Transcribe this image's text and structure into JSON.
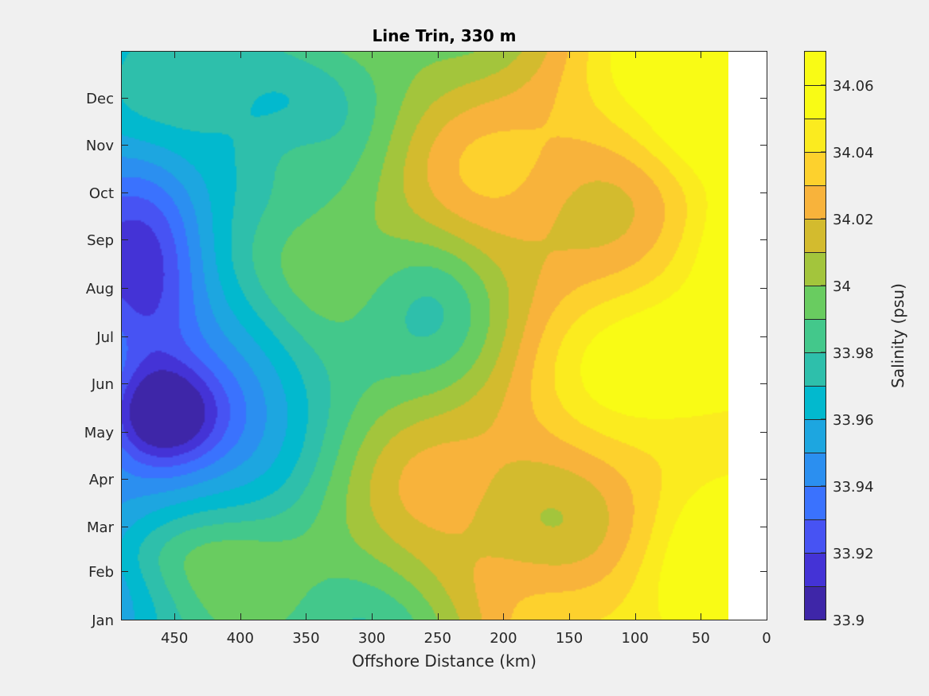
{
  "chart_data": {
    "type": "heatmap",
    "subtype": "filled-contour",
    "title": "Line Trin, 330 m",
    "xlabel": "Offshore Distance (km)",
    "ylabel": "",
    "xlim": [
      490,
      0
    ],
    "x_reversed": true,
    "x_ticks": [
      450,
      400,
      350,
      300,
      250,
      200,
      150,
      100,
      50,
      0
    ],
    "y_ticks": [
      "Jan",
      "Feb",
      "Mar",
      "Apr",
      "May",
      "Jun",
      "Jul",
      "Aug",
      "Sep",
      "Oct",
      "Nov",
      "Dec"
    ],
    "data_xlim": [
      490,
      30
    ],
    "colorbar": {
      "label": "Salinity (psu)",
      "range": [
        33.9,
        34.07
      ],
      "step": 0.01,
      "ticks": [
        33.9,
        33.92,
        33.94,
        33.96,
        33.98,
        34,
        34.02,
        34.04,
        34.06
      ],
      "tick_labels": [
        "33.9",
        "33.92",
        "33.94",
        "33.96",
        "33.98",
        "34",
        "34.02",
        "34.04",
        "34.06"
      ],
      "colormap": "parula",
      "colors": [
        "#3e26a8",
        "#4433d6",
        "#4753f3",
        "#3a72fe",
        "#2b8ff0",
        "#1da6e0",
        "#02b9ce",
        "#2ebfab",
        "#43c88b",
        "#69cc60",
        "#a3c53c",
        "#d3bb2e",
        "#f8b33b",
        "#fdd12d",
        "#fbeb1f",
        "#f9fb15"
      ]
    },
    "grid": false,
    "note_field_values": "Salinity pattern: freshest (~33.90-33.92) around 450-480 km in May; saltiest (~34.06-34.07) near 40 km in June-July; generally increasing toward the coast; no data between 30 and 0 km."
  }
}
